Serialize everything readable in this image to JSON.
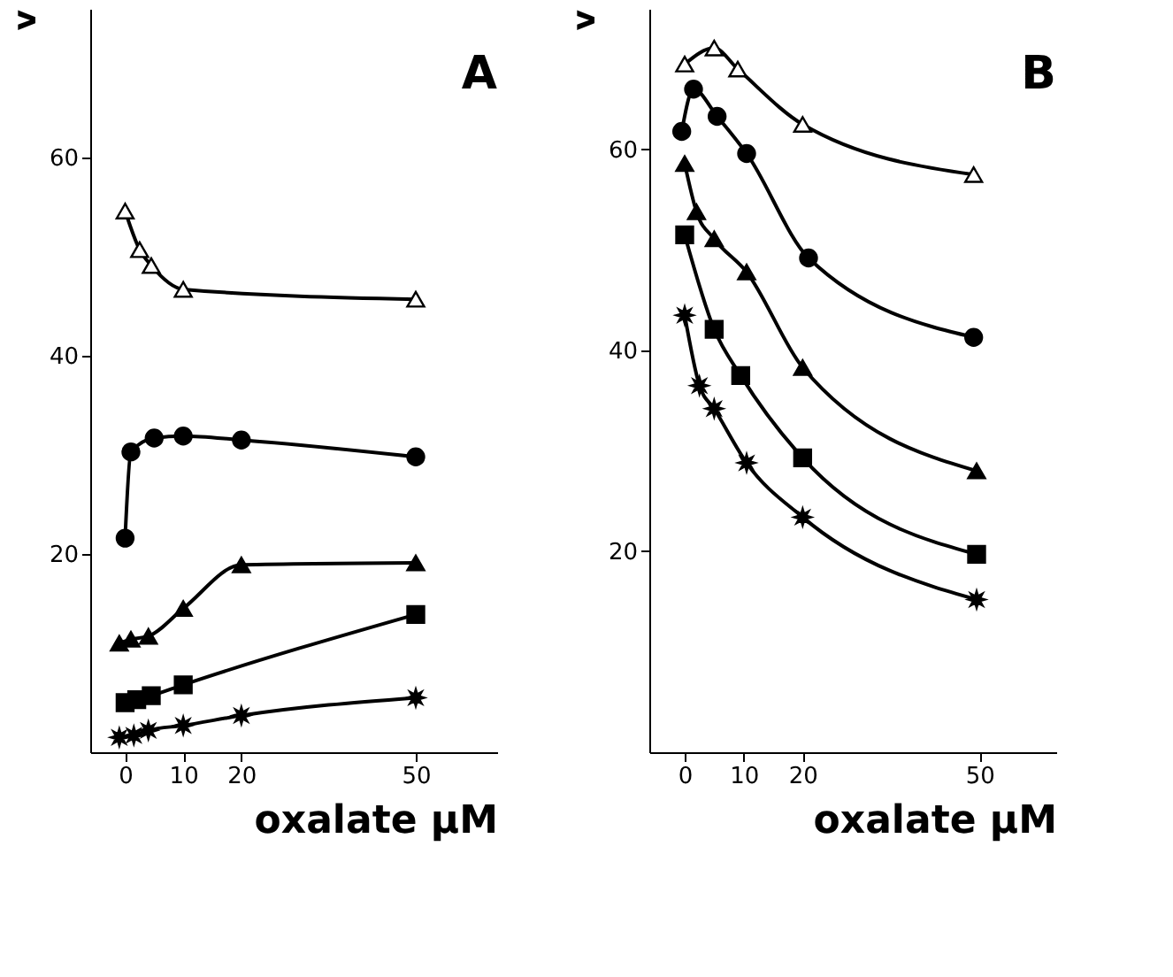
{
  "chart_data": [
    {
      "type": "line",
      "title": "A",
      "xlabel": "oxalate µM",
      "ylabel": "v",
      "xlim": [
        -6,
        64
      ],
      "ylim": [
        0,
        75
      ],
      "xticks": [
        0,
        10,
        20,
        50
      ],
      "yticks": [
        20,
        40,
        60
      ],
      "grid": false,
      "line_style": "solid",
      "series": [
        {
          "color": "#ffffff",
          "marker": "triangle",
          "x": [
            0,
            2.5,
            4.5,
            10,
            50
          ],
          "values": [
            54.6,
            50.7,
            49.1,
            46.7,
            45.7
          ]
        },
        {
          "color": "#000000",
          "marker": "circle",
          "x": [
            0,
            1,
            5,
            10,
            20,
            50
          ],
          "values": [
            21.6,
            30.3,
            31.7,
            31.9,
            31.5,
            29.8
          ]
        },
        {
          "color": "#000000",
          "marker": "triangle",
          "x": [
            -1,
            1,
            4,
            10,
            20,
            50
          ],
          "values": [
            11.0,
            11.4,
            11.7,
            14.5,
            18.9,
            19.1
          ]
        },
        {
          "color": "#000000",
          "marker": "square",
          "x": [
            0,
            2,
            4.5,
            10,
            50
          ],
          "values": [
            5.0,
            5.3,
            5.7,
            6.8,
            13.9
          ]
        },
        {
          "color": "#000000",
          "marker": "star",
          "x": [
            -1,
            1.5,
            4,
            10,
            20,
            50
          ],
          "values": [
            1.5,
            1.7,
            2.2,
            2.7,
            3.7,
            5.5
          ]
        }
      ]
    },
    {
      "type": "line",
      "title": "B",
      "xlabel": "oxalate µM",
      "ylabel": "v",
      "xlim": [
        -6,
        63
      ],
      "ylim": [
        0,
        74
      ],
      "xticks": [
        0,
        10,
        20,
        50
      ],
      "yticks": [
        20,
        40,
        60
      ],
      "grid": false,
      "line_style": "solid",
      "series": [
        {
          "color": "#ffffff",
          "marker": "triangle",
          "x": [
            0,
            5,
            9,
            20,
            49
          ],
          "values": [
            68.5,
            70.1,
            68.0,
            62.5,
            57.5
          ]
        },
        {
          "color": "#000000",
          "marker": "circle",
          "x": [
            -0.5,
            1.5,
            5.5,
            10.5,
            21,
            49
          ],
          "values": [
            61.8,
            66.0,
            63.3,
            59.6,
            49.2,
            41.3
          ]
        },
        {
          "color": "#000000",
          "marker": "triangle",
          "x": [
            0,
            2,
            5,
            10.5,
            20,
            49.5
          ],
          "values": [
            58.6,
            53.8,
            51.1,
            47.8,
            38.3,
            28.0
          ]
        },
        {
          "color": "#000000",
          "marker": "square",
          "x": [
            0,
            5,
            9.5,
            20,
            49.5
          ],
          "values": [
            51.5,
            42.1,
            37.5,
            29.3,
            19.7
          ]
        },
        {
          "color": "#000000",
          "marker": "star",
          "x": [
            0,
            2.5,
            5,
            10.5,
            20,
            49.5
          ],
          "values": [
            43.5,
            36.5,
            34.2,
            28.8,
            23.4,
            15.2
          ]
        }
      ]
    }
  ]
}
